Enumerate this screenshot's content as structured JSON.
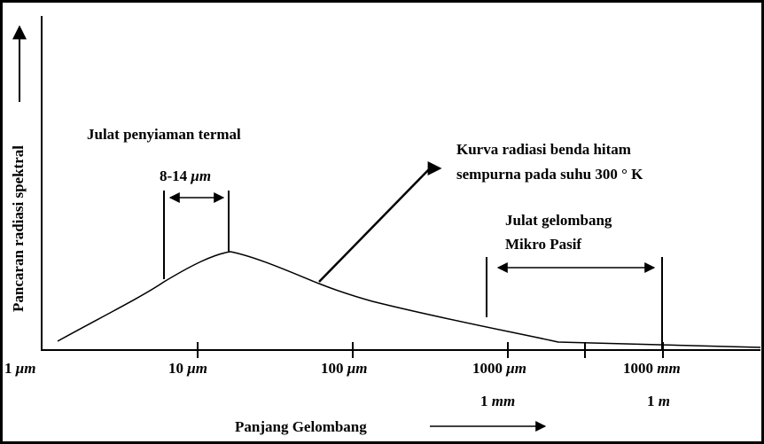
{
  "diagram": {
    "y_axis_label": "Pancaran radiasi spektral",
    "x_axis_label": "Panjang Gelombang",
    "x_labels": [
      {
        "num": "1",
        "unit": "μm"
      },
      {
        "num": "10",
        "unit": "μm"
      },
      {
        "num": "100",
        "unit": "μm"
      },
      {
        "num": "1000",
        "unit": "μm"
      },
      {
        "num": "1000",
        "unit": "mm"
      }
    ],
    "x_sublabels": [
      {
        "num": "1",
        "unit": "mm"
      },
      {
        "num": "1",
        "unit": "m"
      }
    ],
    "thermal_range": {
      "title": "Julat penyiaman termal",
      "num": "8-14",
      "unit": "μm"
    },
    "curve_note": [
      "Kurva radiasi benda hitam",
      "sempurna pada suhu 300 ° K"
    ],
    "microwave_range": [
      "Julat gelombang",
      "Mikro Pasif"
    ]
  }
}
